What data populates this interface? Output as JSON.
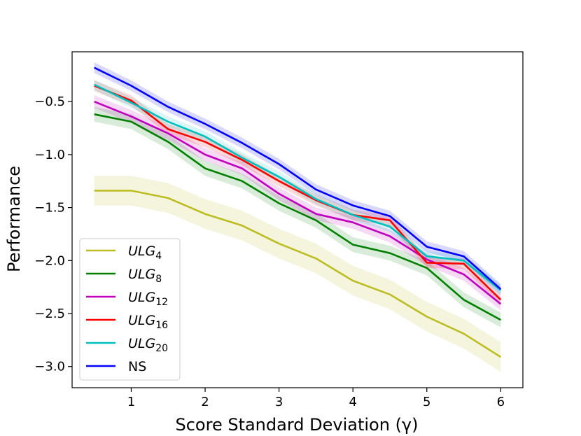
{
  "chart_data": {
    "type": "line",
    "title": "",
    "xlabel": "Score Standard Deviation (γ)",
    "ylabel": "Performance",
    "xlim": [
      0.2,
      6.3
    ],
    "ylim": [
      -3.2,
      -0.03
    ],
    "xticks": [
      1,
      2,
      3,
      4,
      5,
      6
    ],
    "yticks": [
      -3.0,
      -2.5,
      -2.0,
      -1.5,
      -1.0,
      -0.5
    ],
    "xtick_labels": [
      "1",
      "2",
      "3",
      "4",
      "5",
      "6"
    ],
    "ytick_labels": [
      "−3.0",
      "−2.5",
      "−2.0",
      "−1.5",
      "−1.0",
      "−0.5"
    ],
    "grid": false,
    "legend_position": "bottom-left",
    "x": [
      0.5,
      1.0,
      1.5,
      2.0,
      2.5,
      3.0,
      3.5,
      4.0,
      4.5,
      5.0,
      5.5,
      6.0
    ],
    "series": [
      {
        "name": "ULG",
        "subscript": "4",
        "color": "#bcbd22",
        "band": 0.14,
        "values": [
          -1.34,
          -1.34,
          -1.41,
          -1.56,
          -1.67,
          -1.84,
          -1.98,
          -2.19,
          -2.32,
          -2.53,
          -2.69,
          -2.91
        ]
      },
      {
        "name": "ULG",
        "subscript": "8",
        "color": "#008000",
        "band": 0.07,
        "values": [
          -0.62,
          -0.69,
          -0.88,
          -1.13,
          -1.25,
          -1.46,
          -1.62,
          -1.85,
          -1.93,
          -2.07,
          -2.37,
          -2.56
        ]
      },
      {
        "name": "ULG",
        "subscript": "12",
        "color": "#bf00bf",
        "band": 0.06,
        "values": [
          -0.5,
          -0.64,
          -0.8,
          -1.0,
          -1.13,
          -1.37,
          -1.56,
          -1.64,
          -1.77,
          -1.99,
          -2.13,
          -2.41
        ]
      },
      {
        "name": "ULG",
        "subscript": "16",
        "color": "#ff0000",
        "band": 0.05,
        "values": [
          -0.35,
          -0.49,
          -0.76,
          -0.88,
          -1.05,
          -1.25,
          -1.43,
          -1.57,
          -1.62,
          -2.02,
          -2.03,
          -2.37
        ]
      },
      {
        "name": "ULG",
        "subscript": "20",
        "color": "#00bfbf",
        "band": 0.05,
        "values": [
          -0.34,
          -0.51,
          -0.69,
          -0.83,
          -1.03,
          -1.21,
          -1.42,
          -1.57,
          -1.68,
          -1.96,
          -2.0,
          -2.28
        ]
      },
      {
        "name": "NS",
        "subscript": "",
        "color": "#0000ff",
        "band": 0.05,
        "values": [
          -0.18,
          -0.35,
          -0.55,
          -0.71,
          -0.89,
          -1.09,
          -1.33,
          -1.48,
          -1.58,
          -1.87,
          -1.96,
          -2.27
        ]
      }
    ]
  }
}
